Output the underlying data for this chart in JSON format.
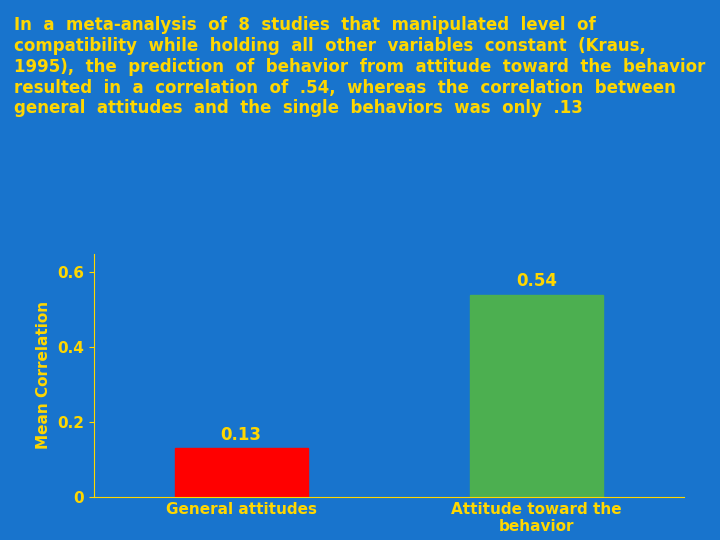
{
  "background_color": "#1874CD",
  "text_color": "#FFD700",
  "title_lines": [
    "In  a  meta-analysis  of  8  studies  that  manipulated  level  of",
    "compatibility  while  holding  all  other  variables  constant  (Kraus,",
    "1995),  the  prediction  of  behavior  from  attitude  toward  the  behavior",
    "resulted  in  a  correlation  of  .54,  whereas  the  correlation  between",
    "general  attitudes  and  the  single  behaviors  was  only  .13"
  ],
  "categories": [
    "General attitudes",
    "Attitude toward the\nbehavior"
  ],
  "values": [
    0.13,
    0.54
  ],
  "bar_colors": [
    "#FF0000",
    "#4CAF50"
  ],
  "ylabel": "Mean Correlation",
  "ylim": [
    0,
    0.65
  ],
  "yticks": [
    0,
    0.2,
    0.4,
    0.6
  ],
  "ytick_labels": [
    "0",
    "0.2",
    "0.4",
    "0.6"
  ],
  "bar_label_values": [
    "0.13",
    "0.54"
  ],
  "value_fontsize": 12,
  "axis_label_fontsize": 11,
  "tick_label_fontsize": 11,
  "title_fontsize": 12,
  "bar_width": 0.45
}
